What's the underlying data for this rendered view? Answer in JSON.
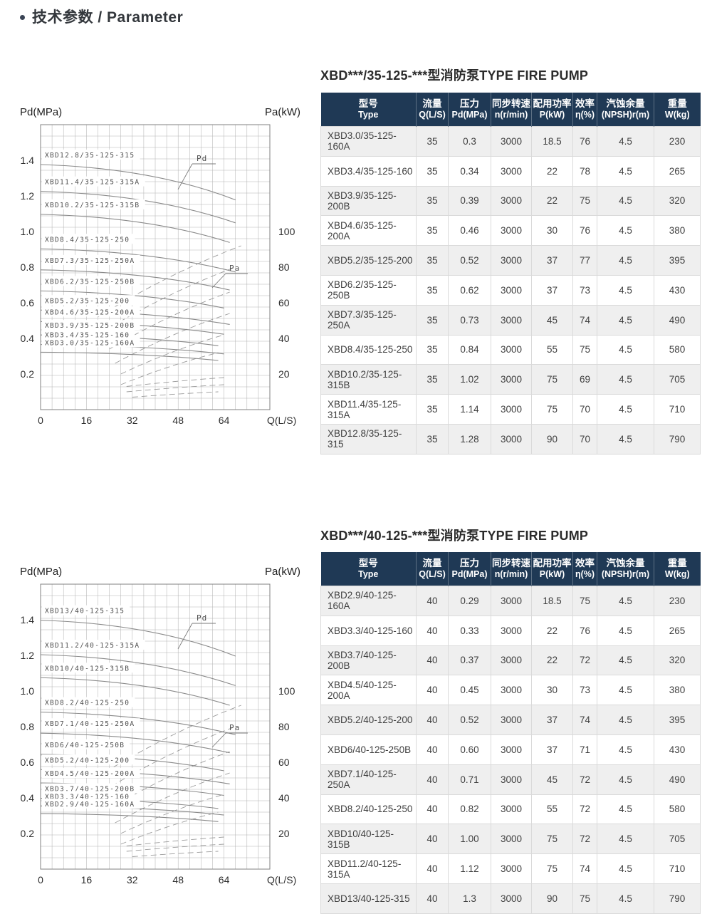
{
  "page": {
    "title": "技术参数 / Parameter"
  },
  "colors": {
    "table_header_bg": "#1f3955",
    "table_header_text": "#ffffff",
    "row_alt_bg": "#efefef",
    "row_bg": "#ffffff",
    "cell_border": "#dadada",
    "grid_line": "#b4b4b4",
    "curve_line": "#8a8a8a",
    "title_text": "#2b2b2b"
  },
  "table_headers": [
    {
      "cn": "型号",
      "en": "Type"
    },
    {
      "cn": "流量",
      "en": "Q(L/S)"
    },
    {
      "cn": "压力",
      "en": "Pd(MPa)"
    },
    {
      "cn": "同步转速",
      "en": "n(r/min)"
    },
    {
      "cn": "配用功率",
      "en": "P(kW)"
    },
    {
      "cn": "效率",
      "en": "η(%)"
    },
    {
      "cn": "汽蚀余量",
      "en": "(NPSH)r(m)"
    },
    {
      "cn": "重量",
      "en": "W(kg)"
    }
  ],
  "sections": [
    {
      "title": "XBD***/35-125-***型消防泵TYPE FIRE PUMP",
      "table_rows": [
        [
          "XBD3.0/35-125-160A",
          "35",
          "0.3",
          "3000",
          "18.5",
          "76",
          "4.5",
          "230"
        ],
        [
          "XBD3.4/35-125-160",
          "35",
          "0.34",
          "3000",
          "22",
          "78",
          "4.5",
          "265"
        ],
        [
          "XBD3.9/35-125-200B",
          "35",
          "0.39",
          "3000",
          "22",
          "75",
          "4.5",
          "320"
        ],
        [
          "XBD4.6/35-125-200A",
          "35",
          "0.46",
          "3000",
          "30",
          "76",
          "4.5",
          "380"
        ],
        [
          "XBD5.2/35-125-200",
          "35",
          "0.52",
          "3000",
          "37",
          "77",
          "4.5",
          "395"
        ],
        [
          "XBD6.2/35-125-250B",
          "35",
          "0.62",
          "3000",
          "37",
          "73",
          "4.5",
          "430"
        ],
        [
          "XBD7.3/35-125-250A",
          "35",
          "0.73",
          "3000",
          "45",
          "74",
          "4.5",
          "490"
        ],
        [
          "XBD8.4/35-125-250",
          "35",
          "0.84",
          "3000",
          "55",
          "75",
          "4.5",
          "580"
        ],
        [
          "XBD10.2/35-125-315B",
          "35",
          "1.02",
          "3000",
          "75",
          "69",
          "4.5",
          "705"
        ],
        [
          "XBD11.4/35-125-315A",
          "35",
          "1.14",
          "3000",
          "75",
          "70",
          "4.5",
          "710"
        ],
        [
          "XBD12.8/35-125-315",
          "35",
          "1.28",
          "3000",
          "90",
          "70",
          "4.5",
          "790"
        ]
      ]
    },
    {
      "title": "XBD***/40-125-***型消防泵TYPE FIRE PUMP",
      "table_rows": [
        [
          "XBD2.9/40-125-160A",
          "40",
          "0.29",
          "3000",
          "18.5",
          "75",
          "4.5",
          "230"
        ],
        [
          "XBD3.3/40-125-160",
          "40",
          "0.33",
          "3000",
          "22",
          "76",
          "4.5",
          "265"
        ],
        [
          "XBD3.7/40-125-200B",
          "40",
          "0.37",
          "3000",
          "22",
          "72",
          "4.5",
          "320"
        ],
        [
          "XBD4.5/40-125-200A",
          "40",
          "0.45",
          "3000",
          "30",
          "73",
          "4.5",
          "380"
        ],
        [
          "XBD5.2/40-125-200",
          "40",
          "0.52",
          "3000",
          "37",
          "74",
          "4.5",
          "395"
        ],
        [
          "XBD6/40-125-250B",
          "40",
          "0.60",
          "3000",
          "37",
          "71",
          "4.5",
          "430"
        ],
        [
          "XBD7.1/40-125-250A",
          "40",
          "0.71",
          "3000",
          "45",
          "72",
          "4.5",
          "490"
        ],
        [
          "XBD8.2/40-125-250",
          "40",
          "0.82",
          "3000",
          "55",
          "72",
          "4.5",
          "580"
        ],
        [
          "XBD10/40-125-315B",
          "40",
          "1.00",
          "3000",
          "75",
          "72",
          "4.5",
          "705"
        ],
        [
          "XBD11.2/40-125-315A",
          "40",
          "1.12",
          "3000",
          "75",
          "74",
          "4.5",
          "710"
        ],
        [
          "XBD13/40-125-315",
          "40",
          "1.3",
          "3000",
          "90",
          "75",
          "4.5",
          "790"
        ]
      ]
    }
  ],
  "chart_data": [
    {
      "type": "line",
      "title": "",
      "xlabel": "Q(L/S)",
      "ylabel_left": "Pd(MPa)",
      "ylabel_right": "Pa(kW)",
      "x_ticks": [
        "0",
        "16",
        "32",
        "48",
        "64"
      ],
      "x_tick_values": [
        0,
        16,
        32,
        48,
        64
      ],
      "xlim": [
        0,
        80
      ],
      "y_ticks_left": [
        "1.4",
        "1.2",
        "1.0",
        "0.8",
        "0.6",
        "0.4",
        "0.2"
      ],
      "y_tick_values_left": [
        1.4,
        1.2,
        1.0,
        0.8,
        0.6,
        0.4,
        0.2
      ],
      "ylim_left": [
        0,
        1.6
      ],
      "y_ticks_right": [
        "100",
        "80",
        "60",
        "40",
        "20"
      ],
      "y_tick_values_right": [
        100,
        80,
        60,
        40,
        20
      ],
      "ylim_right": [
        0,
        160
      ],
      "grid": true,
      "legend_position": "none",
      "annotations": [
        "Pd",
        "Pa"
      ],
      "pd_curves": [
        {
          "label": "XBD12.8/35-125-315",
          "rated_pd": 1.28,
          "q_rated": 35,
          "q_end": 68
        },
        {
          "label": "XBD11.4/35-125-315A",
          "rated_pd": 1.14,
          "q_rated": 35,
          "q_end": 68
        },
        {
          "label": "XBD10.2/35-125-315B",
          "rated_pd": 1.02,
          "q_rated": 35,
          "q_end": 66
        },
        {
          "label": "XBD8.4/35-125-250",
          "rated_pd": 0.84,
          "q_rated": 35,
          "q_end": 68
        },
        {
          "label": "XBD7.3/35-125-250A",
          "rated_pd": 0.73,
          "q_rated": 35,
          "q_end": 66
        },
        {
          "label": "XBD6.2/35-125-250B",
          "rated_pd": 0.62,
          "q_rated": 35,
          "q_end": 64
        },
        {
          "label": "XBD5.2/35-125-200",
          "rated_pd": 0.52,
          "q_rated": 35,
          "q_end": 66
        },
        {
          "label": "XBD4.6/35-125-200A",
          "rated_pd": 0.46,
          "q_rated": 35,
          "q_end": 64
        },
        {
          "label": "XBD3.9/35-125-200B",
          "rated_pd": 0.39,
          "q_rated": 35,
          "q_end": 62
        },
        {
          "label": "XBD3.4/35-125-160",
          "rated_pd": 0.34,
          "q_rated": 35,
          "q_end": 64
        },
        {
          "label": "XBD3.0/35-125-160A",
          "rated_pd": 0.3,
          "q_rated": 35,
          "q_end": 62
        }
      ],
      "pa_dashed_curves": [
        {
          "q": [
            20,
            70
          ],
          "kw": [
            52,
            92
          ]
        },
        {
          "q": [
            22,
            68
          ],
          "kw": [
            44,
            80
          ]
        },
        {
          "q": [
            24,
            66
          ],
          "kw": [
            34,
            66
          ]
        },
        {
          "q": [
            26,
            66
          ],
          "kw": [
            26,
            54
          ]
        },
        {
          "q": [
            28,
            64
          ],
          "kw": [
            20,
            42
          ]
        },
        {
          "q": [
            28,
            62
          ],
          "kw": [
            14,
            32
          ]
        },
        {
          "q": [
            30,
            64
          ],
          "kw": [
            13,
            18
          ]
        },
        {
          "q": [
            30,
            64
          ],
          "kw": [
            10,
            14
          ]
        },
        {
          "q": [
            32,
            62
          ],
          "kw": [
            7,
            10
          ]
        }
      ]
    },
    {
      "type": "line",
      "title": "",
      "xlabel": "Q(L/S)",
      "ylabel_left": "Pd(MPa)",
      "ylabel_right": "Pa(kW)",
      "x_ticks": [
        "0",
        "16",
        "32",
        "48",
        "64"
      ],
      "x_tick_values": [
        0,
        16,
        32,
        48,
        64
      ],
      "xlim": [
        0,
        80
      ],
      "y_ticks_left": [
        "1.4",
        "1.2",
        "1.0",
        "0.8",
        "0.6",
        "0.4",
        "0.2"
      ],
      "y_tick_values_left": [
        1.4,
        1.2,
        1.0,
        0.8,
        0.6,
        0.4,
        0.2
      ],
      "ylim_left": [
        0,
        1.6
      ],
      "y_ticks_right": [
        "100",
        "80",
        "60",
        "40",
        "20"
      ],
      "y_tick_values_right": [
        100,
        80,
        60,
        40,
        20
      ],
      "ylim_right": [
        0,
        160
      ],
      "grid": true,
      "legend_position": "none",
      "annotations": [
        "Pd",
        "Pa"
      ],
      "pd_curves": [
        {
          "label": "XBD13/40-125-315",
          "rated_pd": 1.3,
          "q_rated": 40,
          "q_end": 68
        },
        {
          "label": "XBD11.2/40-125-315A",
          "rated_pd": 1.12,
          "q_rated": 40,
          "q_end": 68
        },
        {
          "label": "XBD10/40-125-315B",
          "rated_pd": 1.0,
          "q_rated": 40,
          "q_end": 66
        },
        {
          "label": "XBD8.2/40-125-250",
          "rated_pd": 0.82,
          "q_rated": 40,
          "q_end": 68
        },
        {
          "label": "XBD7.1/40-125-250A",
          "rated_pd": 0.71,
          "q_rated": 40,
          "q_end": 66
        },
        {
          "label": "XBD6/40-125-250B",
          "rated_pd": 0.6,
          "q_rated": 40,
          "q_end": 64
        },
        {
          "label": "XBD5.2/40-125-200",
          "rated_pd": 0.52,
          "q_rated": 40,
          "q_end": 66
        },
        {
          "label": "XBD4.5/40-125-200A",
          "rated_pd": 0.45,
          "q_rated": 40,
          "q_end": 64
        },
        {
          "label": "XBD3.7/40-125-200B",
          "rated_pd": 0.37,
          "q_rated": 40,
          "q_end": 62
        },
        {
          "label": "XBD3.3/40-125-160",
          "rated_pd": 0.33,
          "q_rated": 40,
          "q_end": 64
        },
        {
          "label": "XBD2.9/40-125-160A",
          "rated_pd": 0.29,
          "q_rated": 40,
          "q_end": 62
        }
      ],
      "pa_dashed_curves": [
        {
          "q": [
            20,
            70
          ],
          "kw": [
            52,
            92
          ]
        },
        {
          "q": [
            22,
            68
          ],
          "kw": [
            44,
            80
          ]
        },
        {
          "q": [
            24,
            66
          ],
          "kw": [
            34,
            66
          ]
        },
        {
          "q": [
            26,
            66
          ],
          "kw": [
            26,
            54
          ]
        },
        {
          "q": [
            28,
            64
          ],
          "kw": [
            20,
            42
          ]
        },
        {
          "q": [
            28,
            62
          ],
          "kw": [
            14,
            32
          ]
        },
        {
          "q": [
            30,
            64
          ],
          "kw": [
            13,
            18
          ]
        },
        {
          "q": [
            30,
            64
          ],
          "kw": [
            10,
            14
          ]
        },
        {
          "q": [
            32,
            62
          ],
          "kw": [
            7,
            10
          ]
        }
      ]
    }
  ]
}
